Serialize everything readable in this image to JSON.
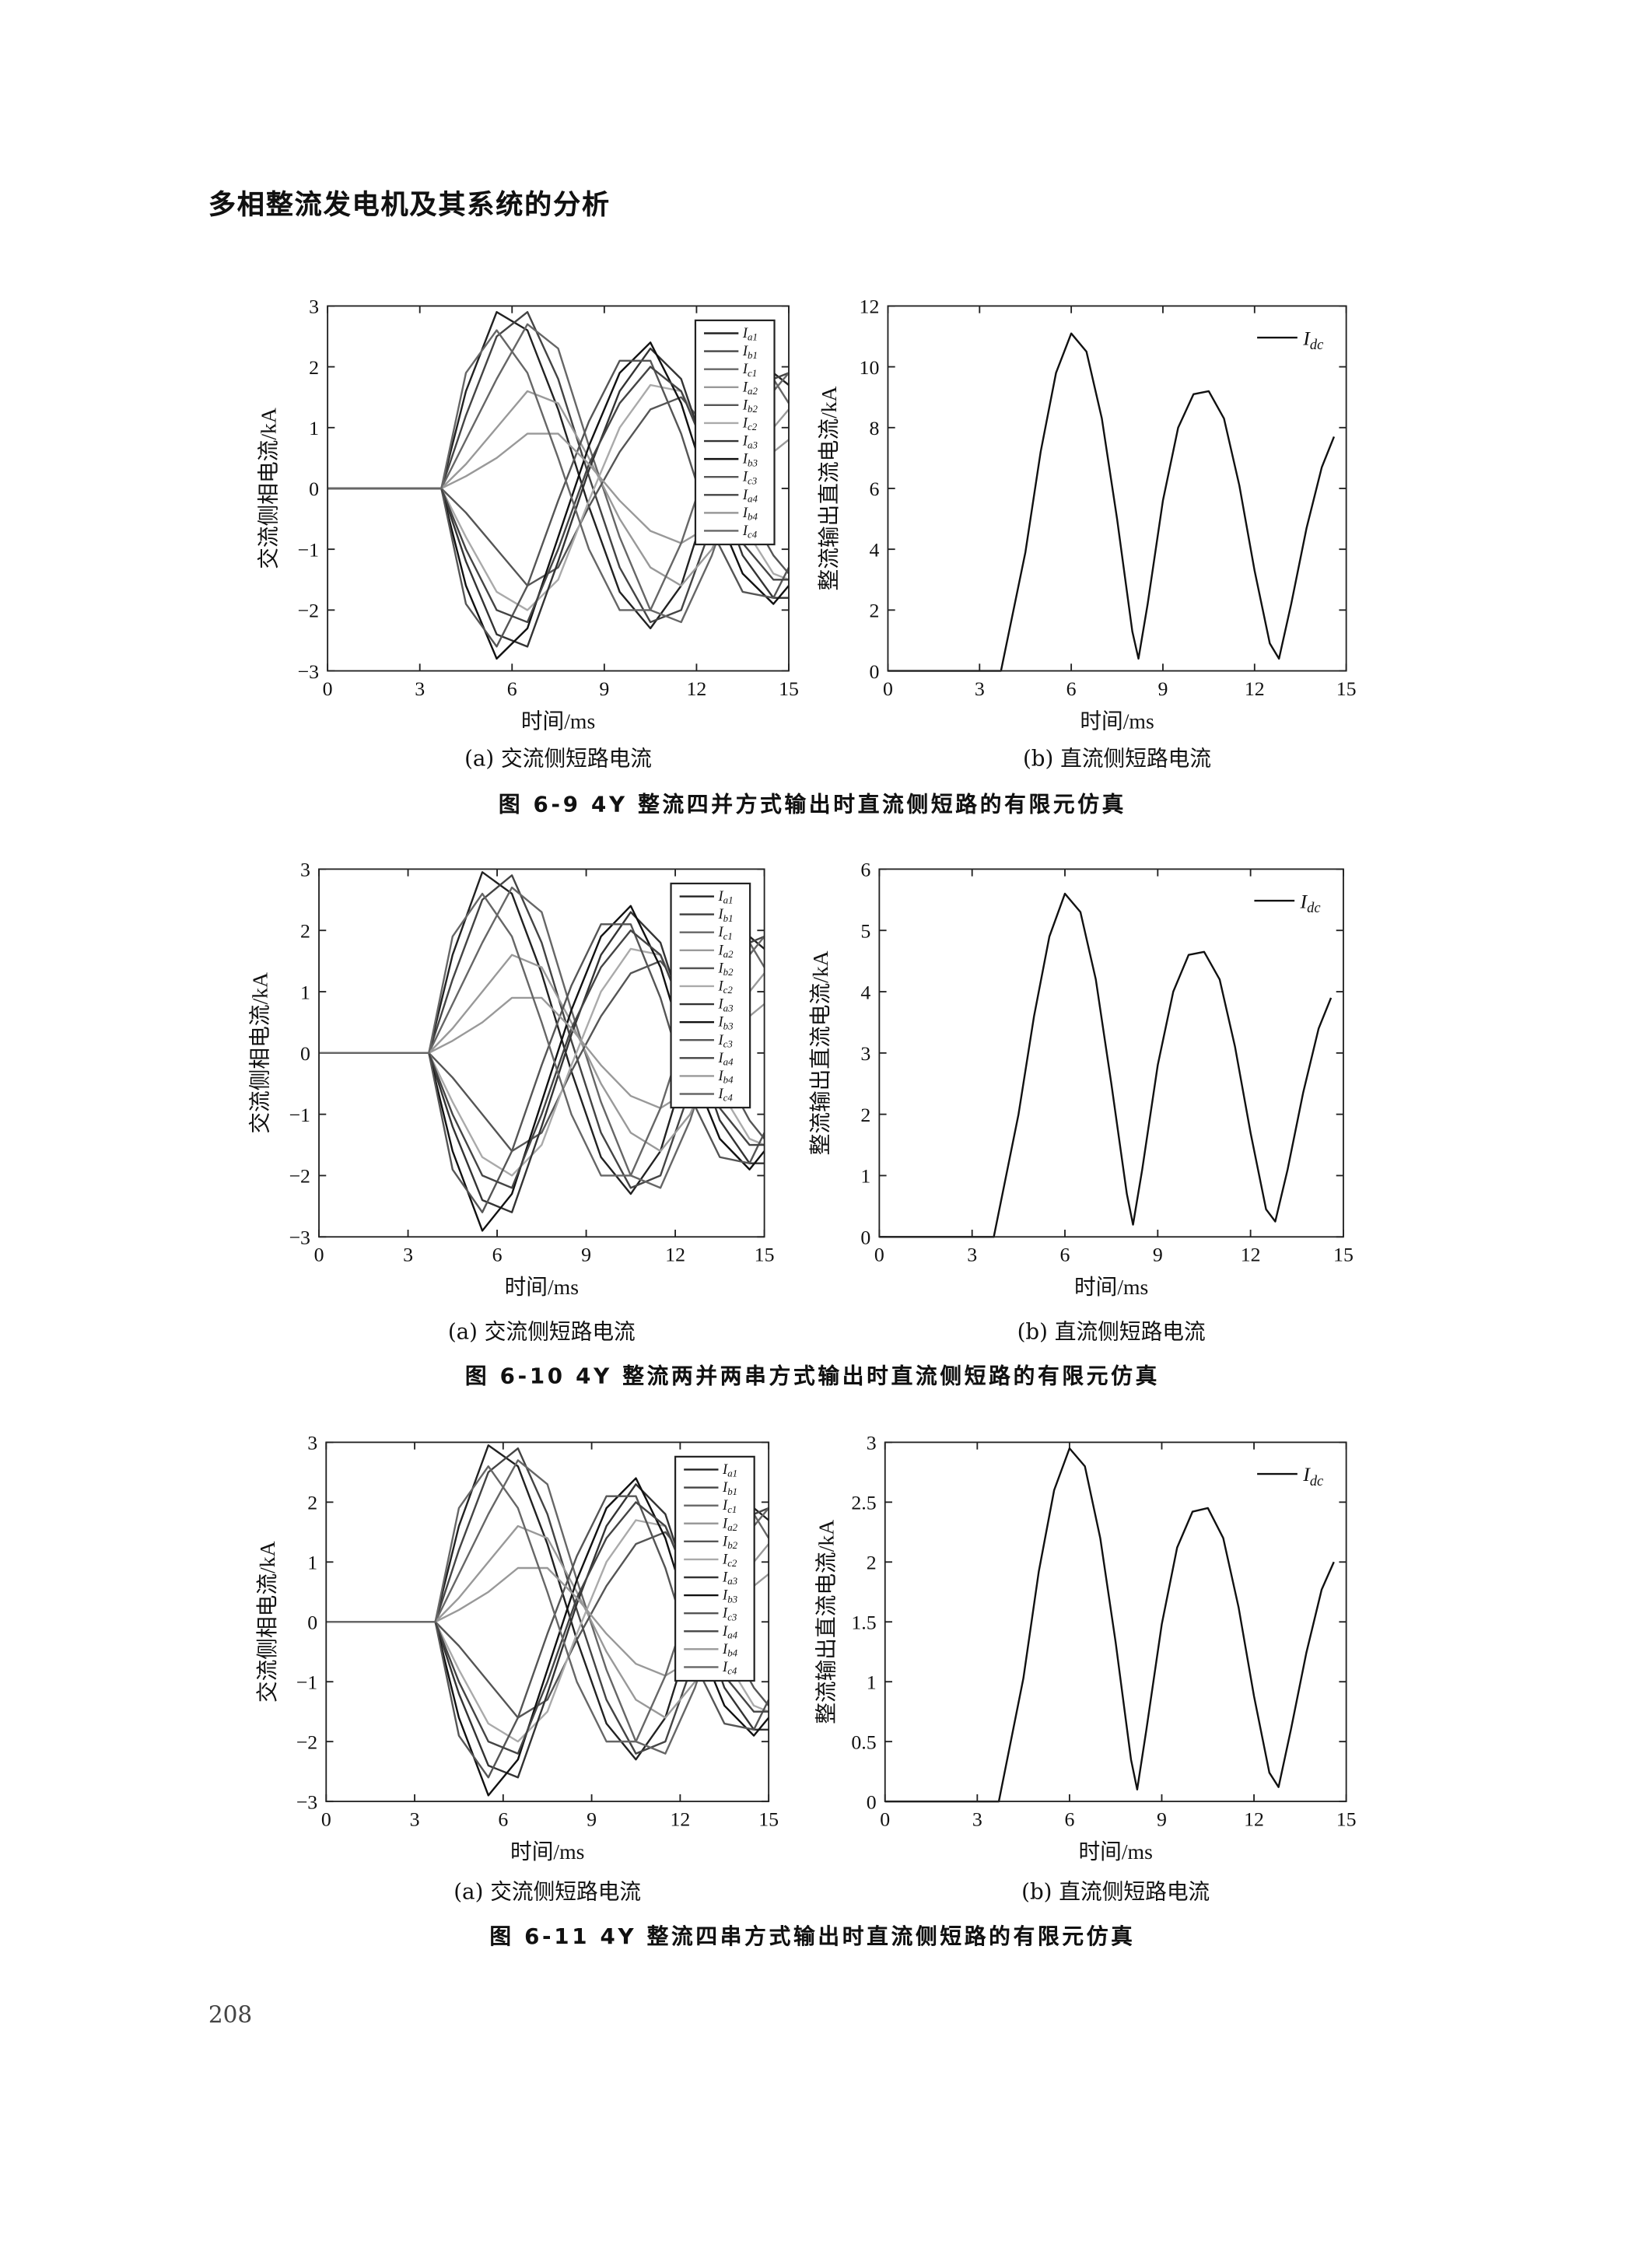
{
  "header": {
    "title": "多相整流发电机及其系统的分析"
  },
  "page_number": "208",
  "figures": [
    {
      "caption_a": "(a) 交流侧短路电流",
      "caption_b": "(b) 直流侧短路电流",
      "title": "图 6-9  4Y 整流四并方式输出时直流侧短路的有限元仿真"
    },
    {
      "caption_a": "(a) 交流侧短路电流",
      "caption_b": "(b) 直流侧短路电流",
      "title": "图 6-10  4Y 整流两并两串方式输出时直流侧短路的有限元仿真"
    },
    {
      "caption_a": "(a) 交流侧短路电流",
      "caption_b": "(b) 直流侧短路电流",
      "title": "图 6-11  4Y 整流四串方式输出时直流侧短路的有限元仿真"
    }
  ],
  "chart_data": [
    {
      "type": "line",
      "xlabel": "时间/ms",
      "ylabel": "交流侧相电流/kA",
      "xlim": [
        0,
        15
      ],
      "ylim": [
        -3,
        3
      ],
      "xticks": [
        0,
        3,
        6,
        9,
        12,
        15
      ],
      "yticks": [
        -3,
        -2,
        -1,
        0,
        1,
        2,
        3
      ],
      "legend": "top-right",
      "x": [
        0,
        3.7,
        4.5,
        5.5,
        6.5,
        7.5,
        8.5,
        9.5,
        10.5,
        11.5,
        12.5,
        13.5,
        14.5,
        15
      ],
      "series": [
        {
          "name": "a1",
          "color": "#222222",
          "values": [
            0,
            0,
            1.6,
            2.9,
            2.6,
            1.3,
            -0.3,
            -1.7,
            -2.3,
            -1.6,
            0.0,
            1.4,
            1.9,
            1.7
          ]
        },
        {
          "name": "b1",
          "color": "#444444",
          "values": [
            0,
            0,
            1.2,
            2.5,
            2.9,
            1.8,
            0.2,
            -1.3,
            -2.2,
            -2.0,
            -0.6,
            0.9,
            1.8,
            1.9
          ]
        },
        {
          "name": "c1",
          "color": "#666666",
          "values": [
            0,
            0,
            0.8,
            1.8,
            2.7,
            2.3,
            0.7,
            -0.8,
            -2.0,
            -2.2,
            -1.1,
            0.4,
            1.6,
            1.9
          ]
        },
        {
          "name": "a2",
          "color": "#999999",
          "values": [
            0,
            0,
            0.4,
            1.0,
            1.6,
            1.4,
            0.5,
            -0.5,
            -1.3,
            -1.6,
            -1.0,
            0.1,
            1.0,
            1.3
          ]
        },
        {
          "name": "b2",
          "color": "#555555",
          "values": [
            0,
            0,
            -0.4,
            -1.0,
            -1.6,
            -1.3,
            -0.3,
            0.6,
            1.3,
            1.5,
            0.9,
            -0.2,
            -1.1,
            -1.4
          ]
        },
        {
          "name": "c2",
          "color": "#aaaaaa",
          "values": [
            0,
            0,
            -0.8,
            -1.7,
            -2.0,
            -1.5,
            -0.2,
            1.0,
            1.7,
            1.6,
            0.6,
            -0.6,
            -1.4,
            -1.5
          ]
        },
        {
          "name": "a3",
          "color": "#333333",
          "values": [
            0,
            0,
            -1.2,
            -2.4,
            -2.6,
            -1.2,
            0.3,
            1.6,
            2.3,
            1.8,
            0.3,
            -1.1,
            -1.8,
            -1.8
          ]
        },
        {
          "name": "b3",
          "color": "#111111",
          "values": [
            0,
            0,
            -1.6,
            -2.8,
            -2.3,
            -0.8,
            0.7,
            1.9,
            2.4,
            1.4,
            -0.2,
            -1.4,
            -1.9,
            -1.6
          ]
        },
        {
          "name": "c3",
          "color": "#555555",
          "values": [
            0,
            0,
            -1.9,
            -2.6,
            -1.6,
            -0.2,
            1.1,
            2.1,
            2.1,
            0.9,
            -0.7,
            -1.7,
            -1.8,
            -1.3
          ]
        },
        {
          "name": "a4",
          "color": "#444444",
          "values": [
            0,
            0,
            -1.0,
            -2.0,
            -2.2,
            -1.0,
            0.4,
            1.4,
            2.0,
            1.6,
            0.4,
            -0.9,
            -1.5,
            -1.5
          ]
        },
        {
          "name": "b4",
          "color": "#999999",
          "values": [
            0,
            0,
            0.2,
            0.5,
            0.9,
            0.9,
            0.4,
            -0.2,
            -0.7,
            -0.9,
            -0.6,
            0.0,
            0.6,
            0.8
          ]
        },
        {
          "name": "c4",
          "color": "#666666",
          "values": [
            0,
            0,
            1.9,
            2.6,
            1.9,
            0.5,
            -1.0,
            -2.0,
            -2.0,
            -0.9,
            0.6,
            1.6,
            1.8,
            1.4
          ]
        }
      ]
    },
    {
      "type": "line",
      "xlabel": "时间/ms",
      "ylabel": "整流输出直流电流/kA",
      "xlim": [
        0,
        15
      ],
      "ylim": [
        0,
        12
      ],
      "xticks": [
        0,
        3,
        6,
        9,
        12,
        15
      ],
      "yticks": [
        0,
        2,
        4,
        6,
        8,
        10,
        12
      ],
      "legend": "top-right",
      "x": [
        0,
        3.7,
        4.5,
        5,
        5.5,
        6,
        6.5,
        7,
        7.5,
        8,
        8.2,
        8.5,
        9,
        9.5,
        10,
        10.5,
        11,
        11.5,
        12,
        12.5,
        12.8,
        13.2,
        13.7,
        14.2,
        14.6
      ],
      "series": [
        {
          "name": "dc",
          "color": "#111111",
          "values": [
            0,
            0,
            3.9,
            7.2,
            9.8,
            11.1,
            10.5,
            8.3,
            5.0,
            1.3,
            0.4,
            2.2,
            5.6,
            8.0,
            9.1,
            9.2,
            8.3,
            6.1,
            3.3,
            0.9,
            0.4,
            2.2,
            4.7,
            6.7,
            7.7
          ]
        }
      ]
    },
    {
      "type": "line",
      "xlabel": "时间/ms",
      "ylabel": "交流侧相电流/kA",
      "xlim": [
        0,
        15
      ],
      "ylim": [
        -3,
        3
      ],
      "xticks": [
        0,
        3,
        6,
        9,
        12,
        15
      ],
      "yticks": [
        -3,
        -2,
        -1,
        0,
        1,
        2,
        3
      ],
      "legend": "top-right",
      "x": [
        0,
        3.7,
        4.5,
        5.5,
        6.5,
        7.5,
        8.5,
        9.5,
        10.5,
        11.5,
        12.5,
        13.5,
        14.5,
        15
      ],
      "series": [
        {
          "name": "a1",
          "color": "#222222",
          "values": [
            0,
            0,
            1.6,
            2.95,
            2.6,
            1.3,
            -0.3,
            -1.7,
            -2.3,
            -1.6,
            0.0,
            1.4,
            1.9,
            1.7
          ]
        },
        {
          "name": "b1",
          "color": "#444444",
          "values": [
            0,
            0,
            1.2,
            2.5,
            2.9,
            1.8,
            0.2,
            -1.3,
            -2.2,
            -2.0,
            -0.6,
            0.9,
            1.8,
            1.9
          ]
        },
        {
          "name": "c1",
          "color": "#666666",
          "values": [
            0,
            0,
            0.8,
            1.8,
            2.7,
            2.3,
            0.7,
            -0.8,
            -2.0,
            -2.2,
            -1.1,
            0.4,
            1.6,
            1.9
          ]
        },
        {
          "name": "a2",
          "color": "#999999",
          "values": [
            0,
            0,
            0.4,
            1.0,
            1.6,
            1.4,
            0.5,
            -0.5,
            -1.3,
            -1.6,
            -1.0,
            0.1,
            1.0,
            1.3
          ]
        },
        {
          "name": "b2",
          "color": "#555555",
          "values": [
            0,
            0,
            -0.4,
            -1.0,
            -1.6,
            -1.3,
            -0.3,
            0.6,
            1.3,
            1.5,
            0.9,
            -0.2,
            -1.1,
            -1.4
          ]
        },
        {
          "name": "c2",
          "color": "#aaaaaa",
          "values": [
            0,
            0,
            -0.8,
            -1.7,
            -2.0,
            -1.5,
            -0.2,
            1.0,
            1.7,
            1.6,
            0.6,
            -0.6,
            -1.4,
            -1.5
          ]
        },
        {
          "name": "a3",
          "color": "#333333",
          "values": [
            0,
            0,
            -1.2,
            -2.4,
            -2.6,
            -1.2,
            0.3,
            1.6,
            2.3,
            1.8,
            0.3,
            -1.1,
            -1.8,
            -1.8
          ]
        },
        {
          "name": "b3",
          "color": "#111111",
          "values": [
            0,
            0,
            -1.6,
            -2.9,
            -2.3,
            -0.8,
            0.7,
            1.9,
            2.4,
            1.4,
            -0.2,
            -1.4,
            -1.9,
            -1.6
          ]
        },
        {
          "name": "c3",
          "color": "#555555",
          "values": [
            0,
            0,
            -1.9,
            -2.6,
            -1.6,
            -0.2,
            1.1,
            2.1,
            2.1,
            0.9,
            -0.7,
            -1.7,
            -1.8,
            -1.3
          ]
        },
        {
          "name": "a4",
          "color": "#444444",
          "values": [
            0,
            0,
            -1.0,
            -2.0,
            -2.2,
            -1.0,
            0.4,
            1.4,
            2.0,
            1.6,
            0.4,
            -0.9,
            -1.5,
            -1.5
          ]
        },
        {
          "name": "b4",
          "color": "#999999",
          "values": [
            0,
            0,
            0.2,
            0.5,
            0.9,
            0.9,
            0.4,
            -0.2,
            -0.7,
            -0.9,
            -0.6,
            0.0,
            0.6,
            0.8
          ]
        },
        {
          "name": "c4",
          "color": "#666666",
          "values": [
            0,
            0,
            1.9,
            2.6,
            1.9,
            0.5,
            -1.0,
            -2.0,
            -2.0,
            -0.9,
            0.6,
            1.6,
            1.8,
            1.4
          ]
        }
      ]
    },
    {
      "type": "line",
      "xlabel": "时间/ms",
      "ylabel": "整流输出直流电流/kA",
      "xlim": [
        0,
        15
      ],
      "ylim": [
        0,
        6
      ],
      "xticks": [
        0,
        3,
        6,
        9,
        12,
        15
      ],
      "yticks": [
        0,
        1,
        2,
        3,
        4,
        5,
        6
      ],
      "legend": "top-right",
      "x": [
        0,
        3.7,
        4.5,
        5,
        5.5,
        6,
        6.5,
        7,
        7.5,
        8,
        8.2,
        8.5,
        9,
        9.5,
        10,
        10.5,
        11,
        11.5,
        12,
        12.5,
        12.8,
        13.2,
        13.7,
        14.2,
        14.6
      ],
      "series": [
        {
          "name": "dc",
          "color": "#111111",
          "values": [
            0,
            0,
            2.0,
            3.6,
            4.9,
            5.6,
            5.3,
            4.2,
            2.5,
            0.7,
            0.2,
            1.1,
            2.8,
            4.0,
            4.6,
            4.65,
            4.2,
            3.1,
            1.7,
            0.45,
            0.25,
            1.1,
            2.35,
            3.4,
            3.9
          ]
        }
      ]
    },
    {
      "type": "line",
      "xlabel": "时间/ms",
      "ylabel": "交流侧相电流/kA",
      "xlim": [
        0,
        15
      ],
      "ylim": [
        -3,
        3
      ],
      "xticks": [
        0,
        3,
        6,
        9,
        12,
        15
      ],
      "yticks": [
        -3,
        -2,
        -1,
        0,
        1,
        2,
        3
      ],
      "legend": "top-right",
      "x": [
        0,
        3.7,
        4.5,
        5.5,
        6.5,
        7.5,
        8.5,
        9.5,
        10.5,
        11.5,
        12.5,
        13.5,
        14.5,
        15
      ],
      "series": [
        {
          "name": "a1",
          "color": "#222222",
          "values": [
            0,
            0,
            1.6,
            2.95,
            2.6,
            1.3,
            -0.3,
            -1.7,
            -2.3,
            -1.6,
            0.0,
            1.4,
            1.9,
            1.7
          ]
        },
        {
          "name": "b1",
          "color": "#444444",
          "values": [
            0,
            0,
            1.2,
            2.5,
            2.9,
            1.8,
            0.2,
            -1.3,
            -2.2,
            -2.0,
            -0.6,
            0.9,
            1.8,
            1.9
          ]
        },
        {
          "name": "c1",
          "color": "#666666",
          "values": [
            0,
            0,
            0.8,
            1.8,
            2.7,
            2.3,
            0.7,
            -0.8,
            -2.0,
            -2.2,
            -1.1,
            0.4,
            1.6,
            1.9
          ]
        },
        {
          "name": "a2",
          "color": "#999999",
          "values": [
            0,
            0,
            0.4,
            1.0,
            1.6,
            1.4,
            0.5,
            -0.5,
            -1.3,
            -1.6,
            -1.0,
            0.1,
            1.0,
            1.3
          ]
        },
        {
          "name": "b2",
          "color": "#555555",
          "values": [
            0,
            0,
            -0.4,
            -1.0,
            -1.6,
            -1.3,
            -0.3,
            0.6,
            1.3,
            1.5,
            0.9,
            -0.2,
            -1.1,
            -1.4
          ]
        },
        {
          "name": "c2",
          "color": "#aaaaaa",
          "values": [
            0,
            0,
            -0.8,
            -1.7,
            -2.0,
            -1.5,
            -0.2,
            1.0,
            1.7,
            1.6,
            0.6,
            -0.6,
            -1.4,
            -1.5
          ]
        },
        {
          "name": "a3",
          "color": "#333333",
          "values": [
            0,
            0,
            -1.2,
            -2.4,
            -2.6,
            -1.2,
            0.3,
            1.6,
            2.3,
            1.8,
            0.3,
            -1.1,
            -1.8,
            -1.8
          ]
        },
        {
          "name": "b3",
          "color": "#111111",
          "values": [
            0,
            0,
            -1.6,
            -2.9,
            -2.3,
            -0.8,
            0.7,
            1.9,
            2.4,
            1.4,
            -0.2,
            -1.4,
            -1.9,
            -1.6
          ]
        },
        {
          "name": "c3",
          "color": "#555555",
          "values": [
            0,
            0,
            -1.9,
            -2.6,
            -1.6,
            -0.2,
            1.1,
            2.1,
            2.1,
            0.9,
            -0.7,
            -1.7,
            -1.8,
            -1.3
          ]
        },
        {
          "name": "a4",
          "color": "#444444",
          "values": [
            0,
            0,
            -1.0,
            -2.0,
            -2.2,
            -1.0,
            0.4,
            1.4,
            2.0,
            1.6,
            0.4,
            -0.9,
            -1.5,
            -1.5
          ]
        },
        {
          "name": "b4",
          "color": "#999999",
          "values": [
            0,
            0,
            0.2,
            0.5,
            0.9,
            0.9,
            0.4,
            -0.2,
            -0.7,
            -0.9,
            -0.6,
            0.0,
            0.6,
            0.8
          ]
        },
        {
          "name": "c4",
          "color": "#666666",
          "values": [
            0,
            0,
            1.9,
            2.6,
            1.9,
            0.5,
            -1.0,
            -2.0,
            -2.0,
            -0.9,
            0.6,
            1.6,
            1.8,
            1.4
          ]
        }
      ]
    },
    {
      "type": "line",
      "xlabel": "时间/ms",
      "ylabel": "整流输出直流电流/kA",
      "xlim": [
        0,
        15
      ],
      "ylim": [
        0,
        3
      ],
      "xticks": [
        0,
        3,
        6,
        9,
        12,
        15
      ],
      "yticks": [
        0,
        0.5,
        1,
        1.5,
        2,
        2.5,
        3
      ],
      "legend": "top-right",
      "x": [
        0,
        3.7,
        4.5,
        5,
        5.5,
        6,
        6.5,
        7,
        7.5,
        8,
        8.2,
        8.5,
        9,
        9.5,
        10,
        10.5,
        11,
        11.5,
        12,
        12.5,
        12.8,
        13.2,
        13.7,
        14.2,
        14.6
      ],
      "series": [
        {
          "name": "dc",
          "color": "#111111",
          "values": [
            0,
            0,
            1.03,
            1.92,
            2.6,
            2.95,
            2.8,
            2.2,
            1.33,
            0.35,
            0.1,
            0.6,
            1.48,
            2.12,
            2.42,
            2.45,
            2.2,
            1.62,
            0.88,
            0.24,
            0.12,
            0.6,
            1.24,
            1.77,
            2.0
          ]
        }
      ]
    }
  ]
}
